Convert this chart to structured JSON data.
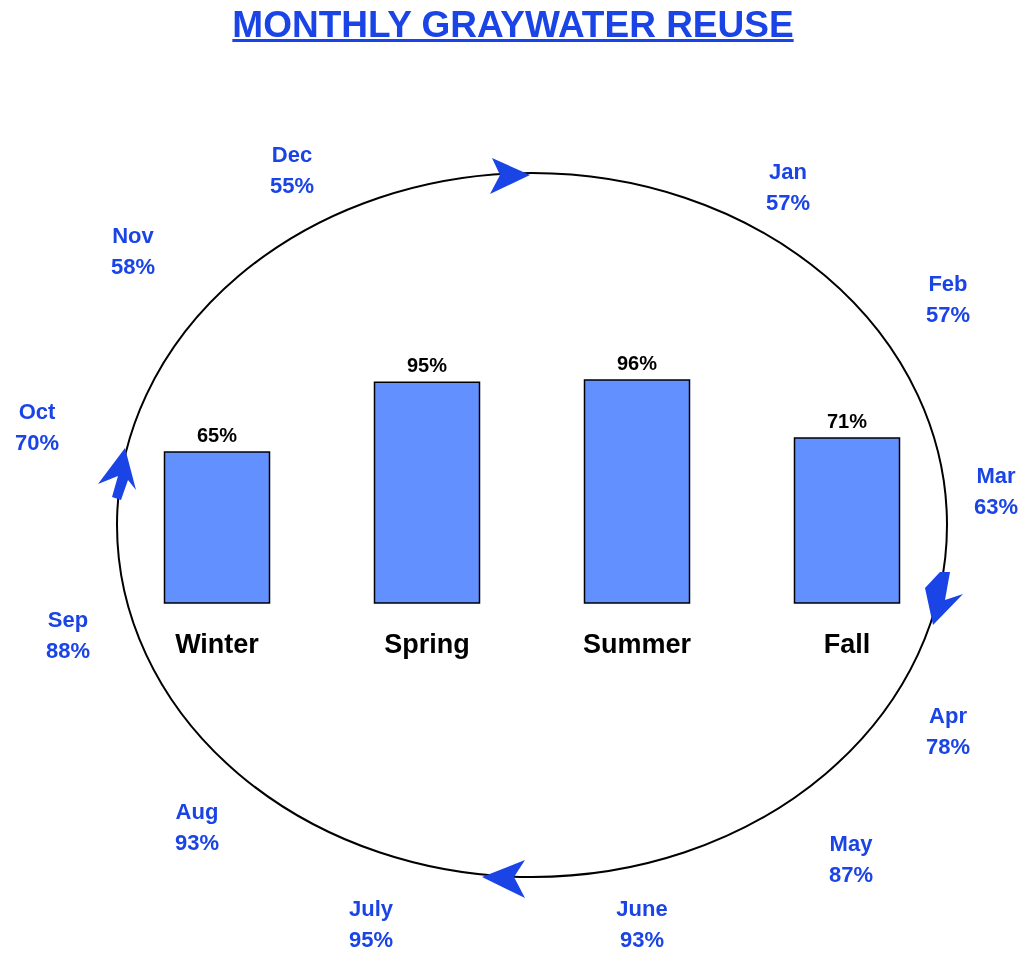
{
  "chart_data": {
    "type": "bar",
    "title": "MONTHLY GRAYWATER REUSE",
    "categories": [
      "Winter",
      "Spring",
      "Summer",
      "Fall"
    ],
    "values": [
      65,
      95,
      96,
      71
    ],
    "color": "#6390ff",
    "value_labels": [
      "65%",
      "95%",
      "96%",
      "71%"
    ],
    "annotations": [
      "Jan\n57%",
      "Feb\n57%",
      "Mar\n63%",
      "Apr\n78%",
      "May\n87%",
      "June\n93%",
      "July\n95%",
      "Aug\n93%",
      "Sep\n88%",
      "Oct\n70%",
      "Nov\n58%",
      "Dec\n55%"
    ]
  }
}
